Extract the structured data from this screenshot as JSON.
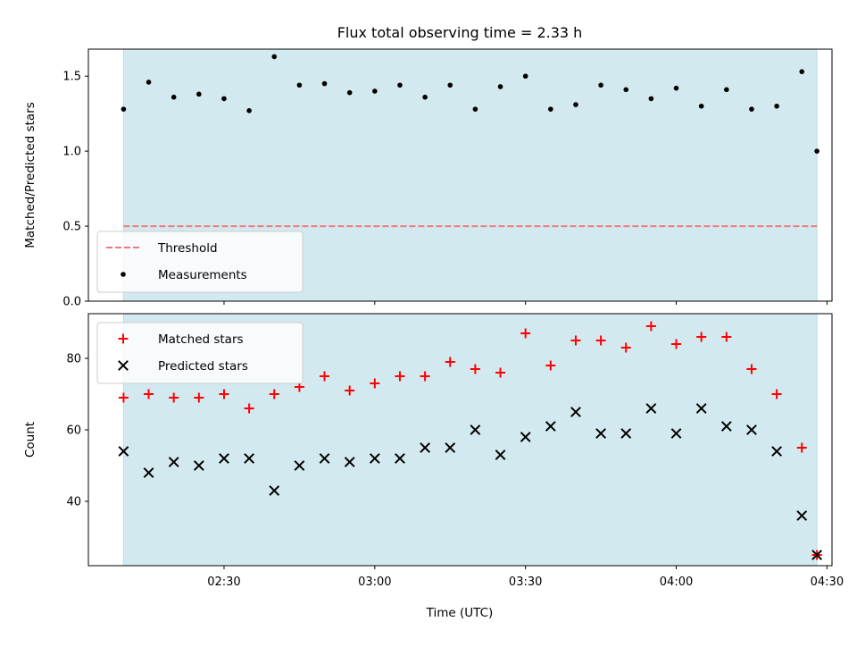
{
  "chart_data": [
    {
      "type": "scatter",
      "title": "Flux total observing time = 2.33 h",
      "ylabel": "Matched/Predicted stars",
      "ylim": [
        0,
        1.68
      ],
      "yticks": [
        0.0,
        0.5,
        1.0,
        1.5
      ],
      "ytick_labels": [
        "0.0",
        "0.5",
        "1.0",
        "1.5"
      ],
      "xlim": [
        "02:03",
        "04:31"
      ],
      "shaded_span": [
        "02:10",
        "04:28"
      ],
      "shaded_color": "#d3e9f0",
      "threshold": {
        "name": "Threshold",
        "value": 0.5,
        "color": "#f07a7a",
        "style": "dashed"
      },
      "legend_placement": "lower-left",
      "series": [
        {
          "name": "Measurements",
          "marker": "dot",
          "color": "#000000",
          "x": [
            "02:10",
            "02:15",
            "02:20",
            "02:25",
            "02:30",
            "02:35",
            "02:40",
            "02:45",
            "02:50",
            "02:55",
            "03:00",
            "03:05",
            "03:10",
            "03:15",
            "03:20",
            "03:25",
            "03:30",
            "03:35",
            "03:40",
            "03:45",
            "03:50",
            "03:55",
            "04:00",
            "04:05",
            "04:10",
            "04:15",
            "04:20",
            "04:25",
            "04:28"
          ],
          "values": [
            1.28,
            1.46,
            1.36,
            1.38,
            1.35,
            1.27,
            1.63,
            1.44,
            1.45,
            1.39,
            1.4,
            1.44,
            1.36,
            1.44,
            1.28,
            1.43,
            1.5,
            1.28,
            1.31,
            1.44,
            1.41,
            1.35,
            1.42,
            1.3,
            1.41,
            1.28,
            1.3,
            1.53,
            1.0
          ]
        }
      ]
    },
    {
      "type": "scatter",
      "xlabel": "Time (UTC)",
      "ylabel": "Count",
      "ylim": [
        22,
        92.5
      ],
      "yticks": [
        40,
        60,
        80
      ],
      "ytick_labels": [
        "40",
        "60",
        "80"
      ],
      "xlim": [
        "02:03",
        "04:31"
      ],
      "xticks": [
        "02:30",
        "03:00",
        "03:30",
        "04:00",
        "04:30"
      ],
      "shaded_span": [
        "02:10",
        "04:28"
      ],
      "shaded_color": "#d3e9f0",
      "legend_placement": "upper-left",
      "series": [
        {
          "name": "Matched stars",
          "marker": "plus",
          "color": "#ff0000",
          "x": [
            "02:10",
            "02:15",
            "02:20",
            "02:25",
            "02:30",
            "02:35",
            "02:40",
            "02:45",
            "02:50",
            "02:55",
            "03:00",
            "03:05",
            "03:10",
            "03:15",
            "03:20",
            "03:25",
            "03:30",
            "03:35",
            "03:40",
            "03:45",
            "03:50",
            "03:55",
            "04:00",
            "04:05",
            "04:10",
            "04:15",
            "04:20",
            "04:25",
            "04:28"
          ],
          "values": [
            69,
            70,
            69,
            69,
            70,
            66,
            70,
            72,
            75,
            71,
            73,
            75,
            75,
            79,
            77,
            76,
            87,
            78,
            85,
            85,
            83,
            89,
            84,
            86,
            86,
            77,
            70,
            55,
            25
          ]
        },
        {
          "name": "Predicted stars",
          "marker": "x",
          "color": "#000000",
          "x": [
            "02:10",
            "02:15",
            "02:20",
            "02:25",
            "02:30",
            "02:35",
            "02:40",
            "02:45",
            "02:50",
            "02:55",
            "03:00",
            "03:05",
            "03:10",
            "03:15",
            "03:20",
            "03:25",
            "03:30",
            "03:35",
            "03:40",
            "03:45",
            "03:50",
            "03:55",
            "04:00",
            "04:05",
            "04:10",
            "04:15",
            "04:20",
            "04:25",
            "04:28"
          ],
          "values": [
            54,
            48,
            51,
            50,
            52,
            52,
            43,
            50,
            52,
            51,
            52,
            52,
            55,
            55,
            60,
            53,
            58,
            61,
            65,
            59,
            59,
            66,
            59,
            66,
            61,
            60,
            54,
            36,
            25
          ]
        }
      ]
    }
  ]
}
